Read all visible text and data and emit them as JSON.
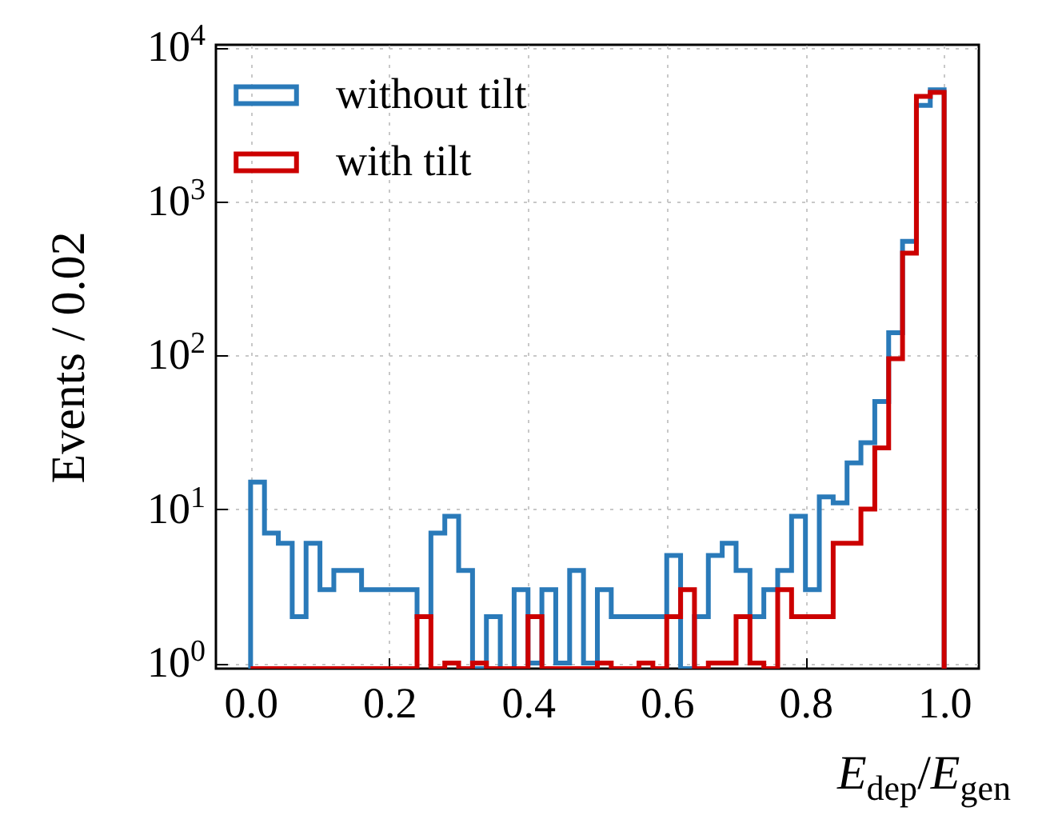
{
  "chart_data": {
    "type": "histogram",
    "xlabel": "E$_{dep}$/E$_{gen}$",
    "ylabel": "Events / 0.02",
    "bins": [
      0,
      0.02,
      0.04,
      0.06,
      0.08,
      0.1,
      0.12,
      0.14,
      0.16,
      0.18,
      0.2,
      0.22,
      0.24,
      0.26,
      0.28,
      0.3,
      0.32,
      0.34,
      0.36,
      0.38,
      0.4,
      0.42,
      0.44,
      0.46,
      0.48,
      0.5,
      0.52,
      0.54,
      0.56,
      0.58,
      0.6,
      0.62,
      0.64,
      0.66,
      0.68,
      0.7,
      0.72,
      0.74,
      0.76,
      0.78,
      0.8,
      0.82,
      0.84,
      0.86,
      0.88,
      0.9,
      0.92,
      0.94,
      0.96,
      0.98,
      1.0
    ],
    "series": [
      {
        "name": "without tilt",
        "color": "#2a7ab9",
        "values": [
          15,
          7,
          6,
          2,
          6,
          3,
          4,
          4,
          3,
          3,
          3,
          3,
          2,
          7,
          9,
          4,
          null,
          2,
          null,
          3,
          1,
          3,
          1,
          4,
          1,
          3,
          2,
          2,
          2,
          2,
          5,
          null,
          2,
          5,
          6,
          4,
          2,
          3,
          4,
          9,
          3,
          12,
          11,
          20,
          27,
          50,
          140,
          550,
          4200,
          5300
        ]
      },
      {
        "name": "with tilt",
        "color": "#cc0000",
        "values": [
          null,
          null,
          null,
          null,
          null,
          null,
          null,
          null,
          null,
          null,
          null,
          null,
          2,
          null,
          1,
          null,
          1,
          null,
          null,
          null,
          2,
          null,
          null,
          null,
          null,
          1,
          null,
          null,
          1,
          null,
          2,
          3,
          null,
          1,
          1,
          2,
          1,
          null,
          3,
          2,
          2,
          2,
          6,
          6,
          10,
          25,
          95,
          460,
          4800,
          5100
        ]
      }
    ],
    "log": "y",
    "xlim": [
      -0.05,
      1.05
    ],
    "ylim": [
      0.92,
      10400
    ],
    "xticks": [
      {
        "value": 0,
        "label": "0.0"
      },
      {
        "value": 0.2,
        "label": "0.2"
      },
      {
        "value": 0.4,
        "label": "0.4"
      },
      {
        "value": 0.6,
        "label": "0.6"
      },
      {
        "value": 0.8,
        "label": "0.8"
      },
      {
        "value": 1,
        "label": "1.0"
      }
    ],
    "yticks": [
      {
        "value": 1,
        "label": "10$^{0}$"
      },
      {
        "value": 10,
        "label": "10$^{1}$"
      },
      {
        "value": 100,
        "label": "10$^{2}$"
      },
      {
        "value": 1000,
        "label": "10$^{3}$"
      },
      {
        "value": 10000,
        "label": "10$^{4}$"
      }
    ],
    "grid": true,
    "legend": "top left"
  }
}
